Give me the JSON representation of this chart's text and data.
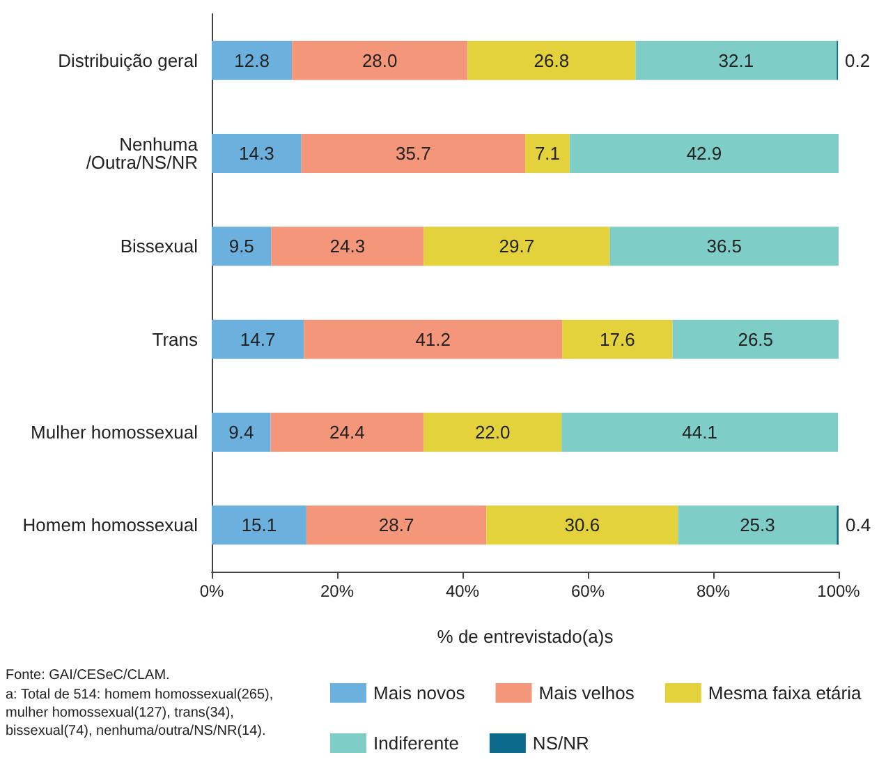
{
  "chart_data": {
    "type": "bar",
    "orientation": "horizontal",
    "stacked": true,
    "xlabel": "% de entrevistado(a)s",
    "categories": [
      "Distribuição geral",
      "Nenhuma\n/Outra/NS/NR",
      "Bissexual",
      "Trans",
      "Mulher homossexual",
      "Homem homossexual"
    ],
    "series": [
      {
        "name": "Mais novos",
        "color": "#6cb0dd",
        "values": [
          12.8,
          14.3,
          9.5,
          14.7,
          9.4,
          15.1
        ],
        "value_labels": [
          "12.8",
          "14.3",
          "9.5",
          "14.7",
          "9.4",
          "15.1"
        ]
      },
      {
        "name": "Mais velhos",
        "color": "#f4967a",
        "values": [
          28.0,
          35.7,
          24.3,
          41.2,
          24.4,
          28.7
        ],
        "value_labels": [
          "28.0",
          "35.7",
          "24.3",
          "41.2",
          "24.4",
          "28.7"
        ]
      },
      {
        "name": "Mesma faixa etária",
        "color": "#e3d23c",
        "values": [
          26.8,
          7.1,
          29.7,
          17.6,
          22.0,
          30.6
        ],
        "value_labels": [
          "26.8",
          "7.1",
          "29.7",
          "17.6",
          "22.0",
          "30.6"
        ]
      },
      {
        "name": "Indiferente",
        "color": "#7ecdc6",
        "values": [
          32.1,
          42.9,
          36.5,
          26.5,
          44.1,
          25.3
        ],
        "value_labels": [
          "32.1",
          "42.9",
          "36.5",
          "26.5",
          "44.1",
          "25.3"
        ]
      },
      {
        "name": "NS/NR",
        "color": "#0c6b8c",
        "values": [
          0.2,
          null,
          null,
          null,
          null,
          0.4
        ],
        "value_labels": [
          "0.2",
          null,
          null,
          null,
          null,
          "0.4"
        ]
      }
    ],
    "xlim": [
      0,
      100
    ],
    "xticks": [
      {
        "value": 0,
        "label": "0%"
      },
      {
        "value": 20,
        "label": "20%"
      },
      {
        "value": 40,
        "label": "40%"
      },
      {
        "value": 60,
        "label": "60%"
      },
      {
        "value": 80,
        "label": "80%"
      },
      {
        "value": 100,
        "label": "100%"
      }
    ],
    "grid": false,
    "legend": "bottom right",
    "annotations": [
      "Fonte: GAI/CESeC/CLAM.",
      "a: Total de 514: homem homossexual(265), mulher homossexual(127), trans(34), bissexual(74), nenhuma/outra/NS/NR(14)."
    ]
  }
}
